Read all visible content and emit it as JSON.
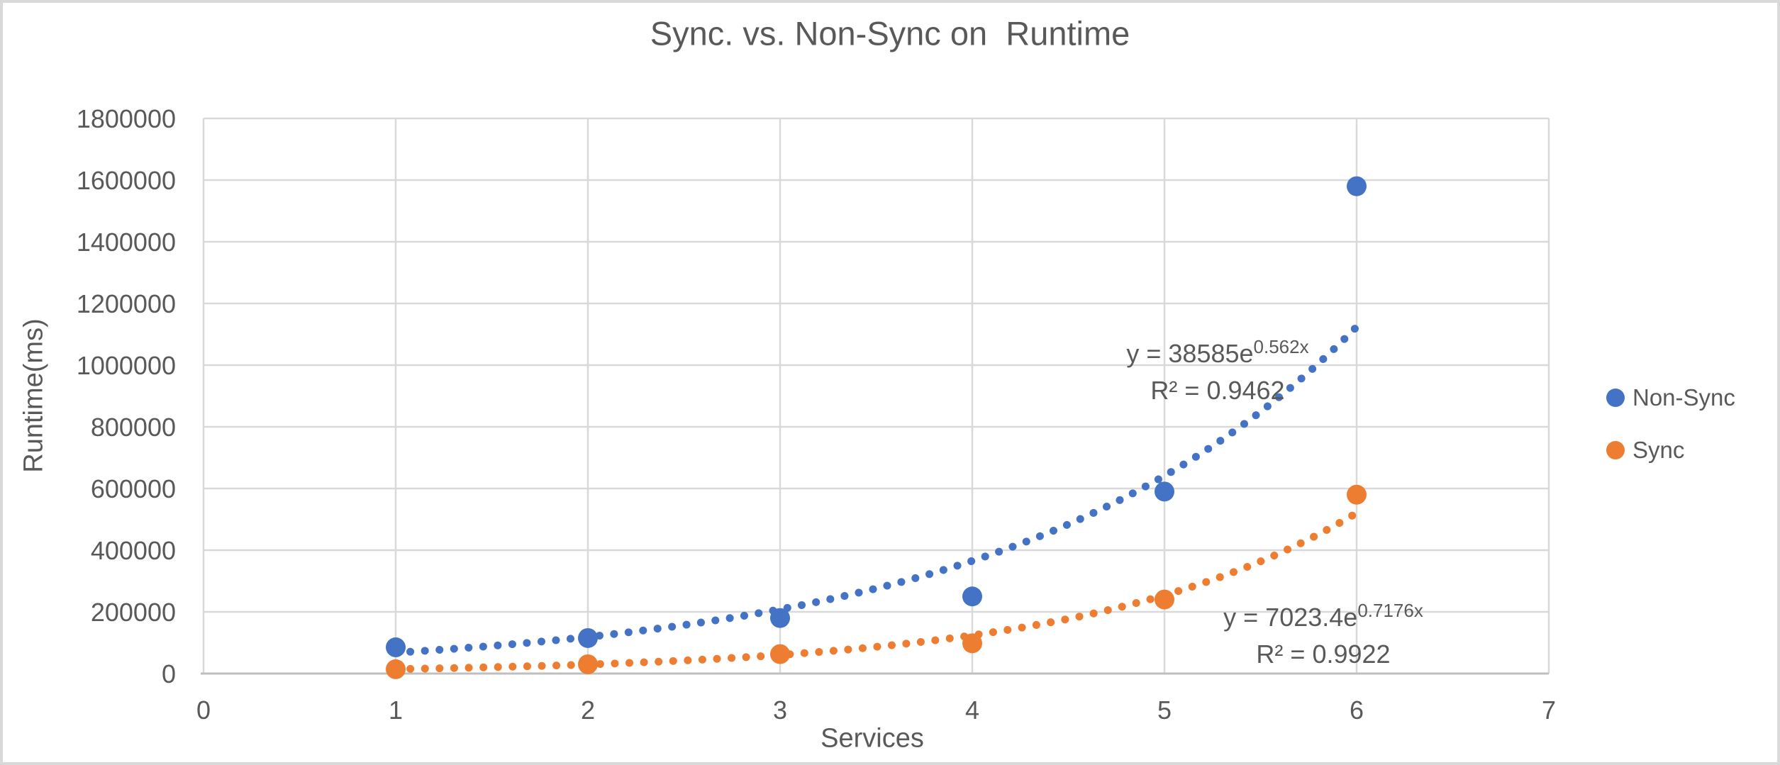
{
  "chart_data": {
    "type": "scatter",
    "title": "Sync. vs. Non-Sync on  Runtime",
    "xlabel": "Services",
    "ylabel": "Runtime(ms)",
    "xlim": [
      0,
      7
    ],
    "ylim": [
      0,
      1800000
    ],
    "x_ticks": [
      0,
      1,
      2,
      3,
      4,
      5,
      6,
      7
    ],
    "y_ticks": [
      0,
      200000,
      400000,
      600000,
      800000,
      1000000,
      1200000,
      1400000,
      1600000,
      1800000
    ],
    "grid": true,
    "legend_position": "right",
    "x": [
      1,
      2,
      3,
      4,
      5,
      6
    ],
    "series": [
      {
        "name": "Non-Sync",
        "color": "#4472C4",
        "values": [
          85000,
          115000,
          180000,
          250000,
          590000,
          1580000
        ],
        "trendline": {
          "type": "exponential",
          "style": "dotted",
          "a": 38585,
          "b": 0.562,
          "equation_base": "y = 38585e",
          "equation_exponent": "0.562x",
          "r_squared": "R² = 0.9462"
        }
      },
      {
        "name": "Sync",
        "color": "#ED7D31",
        "values": [
          14000,
          30000,
          63000,
          98000,
          240000,
          580000
        ],
        "trendline": {
          "type": "exponential",
          "style": "dotted",
          "a": 7023.4,
          "b": 0.7176,
          "equation_base": "y = 7023.4e",
          "equation_exponent": "0.7176x",
          "r_squared": "R² = 0.9922"
        }
      }
    ]
  },
  "colors": {
    "gridline": "#D9D9D9",
    "axis_line": "#BFBFBF",
    "text": "#595959"
  }
}
